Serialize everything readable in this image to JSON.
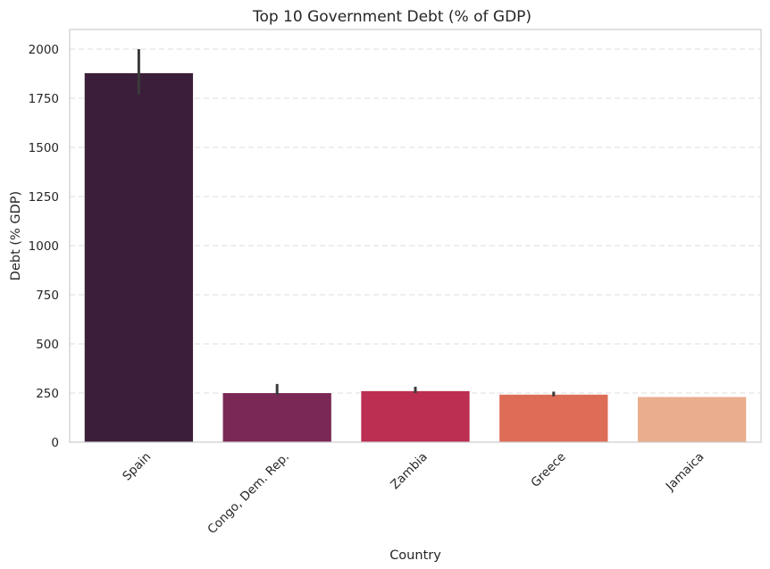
{
  "chart_data": {
    "type": "bar",
    "title": "Top 10 Government Debt (% of GDP)",
    "xlabel": "Country",
    "ylabel": "Debt (% GDP)",
    "ylim": [
      0,
      2100
    ],
    "yticks": [
      "0",
      "250",
      "500",
      "750",
      "1000",
      "1250",
      "1500",
      "1750",
      "2000"
    ],
    "categories": [
      "Spain",
      "Congo, Dem. Rep.",
      "Zambia",
      "Greece",
      "Jamaica"
    ],
    "values": [
      1880,
      252,
      262,
      244,
      232
    ],
    "error_low": [
      1770,
      240,
      250,
      233,
      232
    ],
    "error_high": [
      2000,
      296,
      282,
      257,
      232
    ],
    "colors": [
      "#3b1f3a",
      "#7a2856",
      "#bc2e52",
      "#de6d57",
      "#eaad8e"
    ],
    "grid": true,
    "legend": "none"
  }
}
